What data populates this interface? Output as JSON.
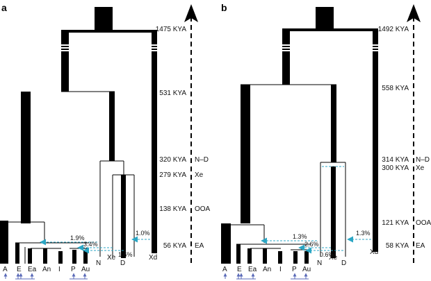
{
  "panels": [
    {
      "label": "a",
      "times": [
        "1475 KYA",
        "531 KYA",
        "320 KYA",
        "279 KYA",
        "138 KYA",
        "56 KYA"
      ],
      "events": [
        "N–D",
        "Xe",
        "OOA",
        "EA"
      ],
      "tips": [
        "A",
        "E",
        "Ea",
        "An",
        "I",
        "P",
        "Au",
        "N",
        "Xe",
        "D",
        "Xd"
      ],
      "flows": [
        "1.9%",
        "3.4%",
        "1.0%",
        "1.6%"
      ]
    },
    {
      "label": "b",
      "times": [
        "1492 KYA",
        "558 KYA",
        "314 KYA",
        "300 KYA",
        "121 KYA",
        "58 KYA"
      ],
      "events": [
        "N–D",
        "Xe",
        "OOA",
        "EA"
      ],
      "tips": [
        "A",
        "E",
        "Ea",
        "An",
        "I",
        "P",
        "Au",
        "N",
        "Xe",
        "D",
        "Xd"
      ],
      "flows": [
        "1.3%",
        "2.6%",
        "1.3%",
        "0.6%"
      ]
    }
  ],
  "colors": {
    "tree": "#000000",
    "gene_flow": "#2ba6c4",
    "sample_arrows": "#5a6ab8"
  }
}
